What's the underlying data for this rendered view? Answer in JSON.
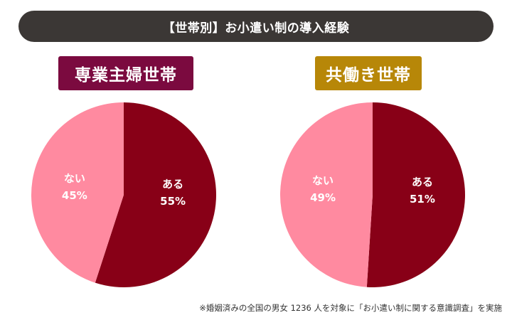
{
  "title": "【世帯別】お小遣い制の導入経験",
  "footnote": "※婚姻済みの全国の男女 1236 人を対象に「お小遣い制に関する意識調査」を実施",
  "colors": {
    "title_bg": "#3b3735",
    "label_left_bg": "#7b0a3f",
    "label_right_bg": "#b78708",
    "yes_slice": "#880017",
    "no_slice": "#ff8aa0"
  },
  "chart_data": [
    {
      "type": "pie",
      "title": "専業主婦世帯",
      "slices": [
        {
          "label": "ある",
          "value": 55,
          "display": "55%"
        },
        {
          "label": "ない",
          "value": 45,
          "display": "45%"
        }
      ]
    },
    {
      "type": "pie",
      "title": "共働き世帯",
      "slices": [
        {
          "label": "ある",
          "value": 51,
          "display": "51%"
        },
        {
          "label": "ない",
          "value": 49,
          "display": "49%"
        }
      ]
    }
  ]
}
